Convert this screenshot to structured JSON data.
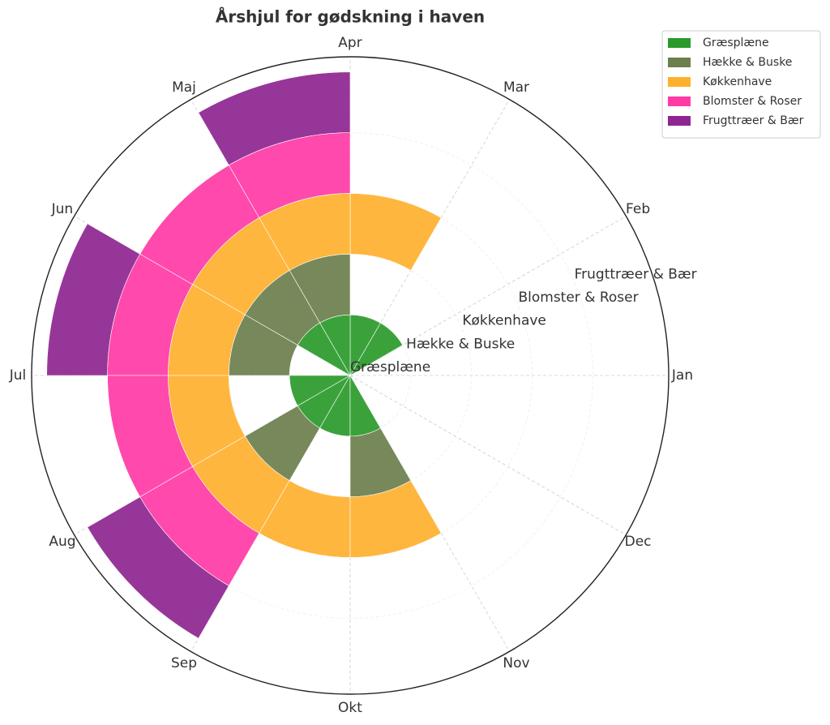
{
  "chart_data": {
    "type": "polar-bar",
    "title": "Årshjul for gødskning i haven",
    "categories": [
      "Jan",
      "Feb",
      "Mar",
      "Apr",
      "Maj",
      "Jun",
      "Jul",
      "Aug",
      "Sep",
      "Okt",
      "Nov",
      "Dec"
    ],
    "series": [
      {
        "name": "Græsplæne",
        "color": "#2a9a2a",
        "values": [
          0,
          1,
          1,
          1,
          1,
          0,
          1,
          1,
          1,
          1,
          0,
          0
        ]
      },
      {
        "name": "Hække & Buske",
        "color": "#6b7f4c",
        "values": [
          0,
          0,
          0,
          1,
          1,
          1,
          0,
          1,
          0,
          1,
          0,
          0
        ]
      },
      {
        "name": "Køkkenhave",
        "color": "#ffb02e",
        "values": [
          0,
          0,
          1,
          1,
          1,
          1,
          1,
          1,
          1,
          1,
          0,
          0
        ]
      },
      {
        "name": "Blomster & Roser",
        "color": "#ff3aa5",
        "values": [
          0,
          0,
          0,
          1,
          1,
          1,
          1,
          1,
          0,
          0,
          0,
          0
        ]
      },
      {
        "name": "Frugttræer & Bær",
        "color": "#8e2590",
        "values": [
          0,
          0,
          0,
          1,
          0,
          1,
          0,
          1,
          0,
          0,
          0,
          0
        ]
      }
    ],
    "rlim": [
      0,
      5.25
    ],
    "rticks": [
      {
        "value": 0,
        "label": "Græsplæne"
      },
      {
        "value": 1,
        "label": "Hække & Buske"
      },
      {
        "value": 2,
        "label": "Køkkenhave"
      },
      {
        "value": 3,
        "label": "Blomster & Roser"
      },
      {
        "value": 4,
        "label": "Frugttræer & Bær"
      }
    ],
    "grid": true,
    "legend": "upper right"
  }
}
